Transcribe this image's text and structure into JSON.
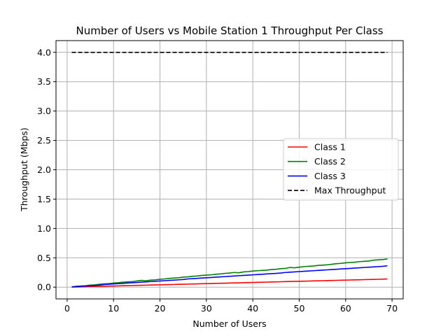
{
  "chart_data": {
    "type": "line",
    "title": "Number of Users vs Mobile Station 1 Throughput Per Class",
    "xlabel": "Number of Users",
    "ylabel": "Throughput (Mbps)",
    "xlim": [
      -2.4,
      72.4
    ],
    "ylim": [
      -0.2,
      4.2
    ],
    "xticks": [
      0,
      10,
      20,
      30,
      40,
      50,
      60,
      70
    ],
    "yticks": [
      0.0,
      0.5,
      1.0,
      1.5,
      2.0,
      2.5,
      3.0,
      3.5,
      4.0
    ],
    "xtick_labels": [
      "0",
      "10",
      "20",
      "30",
      "40",
      "50",
      "60",
      "70"
    ],
    "ytick_labels": [
      "0.0",
      "0.5",
      "1.0",
      "1.5",
      "2.0",
      "2.5",
      "3.0",
      "3.5",
      "4.0"
    ],
    "grid": true,
    "legend_position": "center-right",
    "x": [
      1,
      2,
      3,
      4,
      5,
      6,
      7,
      8,
      9,
      10,
      11,
      12,
      13,
      14,
      15,
      16,
      17,
      18,
      19,
      20,
      21,
      22,
      23,
      24,
      25,
      26,
      27,
      28,
      29,
      30,
      31,
      32,
      33,
      34,
      35,
      36,
      37,
      38,
      39,
      40,
      41,
      42,
      43,
      44,
      45,
      46,
      47,
      48,
      49,
      50,
      51,
      52,
      53,
      54,
      55,
      56,
      57,
      58,
      59,
      60,
      61,
      62,
      63,
      64,
      65,
      66,
      67,
      68,
      69
    ],
    "series": [
      {
        "name": "Class 1",
        "color": "#ff0000",
        "style": "solid",
        "values": [
          0.002,
          0.004,
          0.006,
          0.008,
          0.01,
          0.012,
          0.014,
          0.016,
          0.018,
          0.02,
          0.022,
          0.024,
          0.026,
          0.028,
          0.03,
          0.032,
          0.034,
          0.036,
          0.038,
          0.04,
          0.042,
          0.044,
          0.046,
          0.048,
          0.05,
          0.052,
          0.054,
          0.056,
          0.058,
          0.06,
          0.062,
          0.064,
          0.066,
          0.068,
          0.07,
          0.072,
          0.074,
          0.076,
          0.078,
          0.08,
          0.082,
          0.084,
          0.086,
          0.088,
          0.09,
          0.092,
          0.094,
          0.097,
          0.099,
          0.1,
          0.102,
          0.104,
          0.106,
          0.108,
          0.11,
          0.112,
          0.114,
          0.116,
          0.118,
          0.12,
          0.122,
          0.124,
          0.126,
          0.128,
          0.13,
          0.132,
          0.134,
          0.136,
          0.14
        ]
      },
      {
        "name": "Class 2",
        "color": "#008000",
        "style": "solid",
        "values": [
          0.005,
          0.015,
          0.02,
          0.025,
          0.035,
          0.04,
          0.05,
          0.055,
          0.06,
          0.07,
          0.075,
          0.085,
          0.09,
          0.095,
          0.105,
          0.115,
          0.11,
          0.12,
          0.125,
          0.135,
          0.14,
          0.15,
          0.155,
          0.16,
          0.17,
          0.175,
          0.185,
          0.19,
          0.2,
          0.205,
          0.21,
          0.22,
          0.225,
          0.235,
          0.24,
          0.25,
          0.245,
          0.26,
          0.265,
          0.275,
          0.28,
          0.285,
          0.29,
          0.3,
          0.305,
          0.315,
          0.32,
          0.335,
          0.33,
          0.34,
          0.35,
          0.355,
          0.36,
          0.37,
          0.375,
          0.38,
          0.39,
          0.4,
          0.405,
          0.415,
          0.42,
          0.425,
          0.435,
          0.44,
          0.445,
          0.46,
          0.465,
          0.47,
          0.48
        ]
      },
      {
        "name": "Class 3",
        "color": "#0000ff",
        "style": "solid",
        "values": [
          0.005,
          0.01,
          0.015,
          0.02,
          0.025,
          0.03,
          0.035,
          0.045,
          0.05,
          0.055,
          0.06,
          0.065,
          0.07,
          0.075,
          0.08,
          0.085,
          0.09,
          0.095,
          0.1,
          0.105,
          0.11,
          0.115,
          0.12,
          0.125,
          0.13,
          0.14,
          0.145,
          0.15,
          0.155,
          0.16,
          0.165,
          0.17,
          0.175,
          0.18,
          0.185,
          0.19,
          0.195,
          0.2,
          0.205,
          0.21,
          0.215,
          0.22,
          0.225,
          0.23,
          0.235,
          0.24,
          0.25,
          0.255,
          0.26,
          0.265,
          0.27,
          0.275,
          0.28,
          0.285,
          0.29,
          0.295,
          0.3,
          0.305,
          0.31,
          0.315,
          0.32,
          0.325,
          0.33,
          0.335,
          0.34,
          0.345,
          0.35,
          0.355,
          0.365
        ]
      },
      {
        "name": "Max Throughput",
        "color": "#000000",
        "style": "dashed",
        "x": [
          1,
          69
        ],
        "values": [
          4.0,
          4.0
        ]
      }
    ]
  }
}
